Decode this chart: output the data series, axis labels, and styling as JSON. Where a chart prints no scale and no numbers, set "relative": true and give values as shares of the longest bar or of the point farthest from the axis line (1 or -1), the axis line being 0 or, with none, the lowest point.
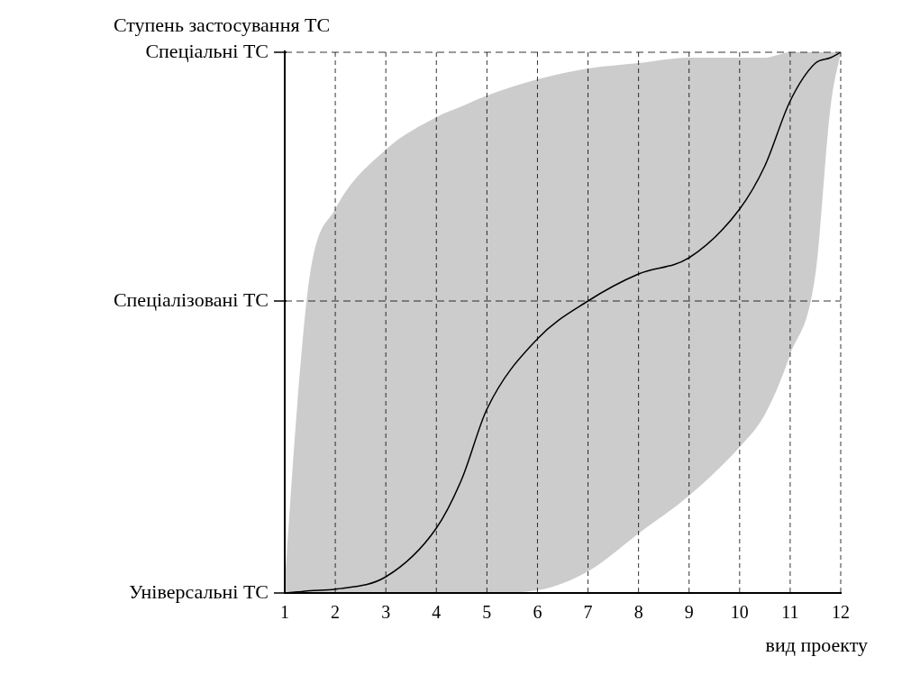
{
  "chart_data": {
    "type": "line",
    "ylabel": "Ступень застосування ТС",
    "xlabel": "вид проекту",
    "xlim": [
      1,
      12
    ],
    "xticks": [
      1,
      2,
      3,
      4,
      5,
      6,
      7,
      8,
      9,
      10,
      11,
      12
    ],
    "relative": true,
    "grid": "x",
    "line_style": "solid",
    "ref_lines": [
      {
        "axis": "y",
        "value": 0,
        "label": "Універсальні ТС"
      },
      {
        "axis": "y",
        "value": 0.54,
        "label": "Спеціалізовані ТС"
      },
      {
        "axis": "y",
        "value": 1,
        "label": "Спеціальні ТС"
      }
    ],
    "series": [
      {
        "color": "#000000",
        "x": [
          1,
          1.25,
          1.5,
          2,
          3,
          4,
          4.5,
          5,
          6,
          7,
          8,
          9,
          10,
          10.5,
          11,
          11.5,
          11.8,
          12
        ],
        "values": [
          0,
          0.002,
          0.004,
          0.007,
          0.03,
          0.12,
          0.21,
          0.34,
          0.47,
          0.54,
          0.59,
          0.62,
          0.71,
          0.79,
          0.91,
          0.98,
          0.99,
          1
        ],
        "upper": [
          0.02,
          0.35,
          0.59,
          0.71,
          0.82,
          0.88,
          0.9,
          0.92,
          0.95,
          0.97,
          0.98,
          0.99,
          0.99,
          0.99,
          1,
          1,
          1,
          1
        ],
        "lower": [
          0,
          0,
          0,
          0,
          0,
          0,
          0,
          0,
          0.005,
          0.04,
          0.11,
          0.18,
          0.27,
          0.33,
          0.44,
          0.59,
          0.9,
          1
        ]
      }
    ]
  }
}
